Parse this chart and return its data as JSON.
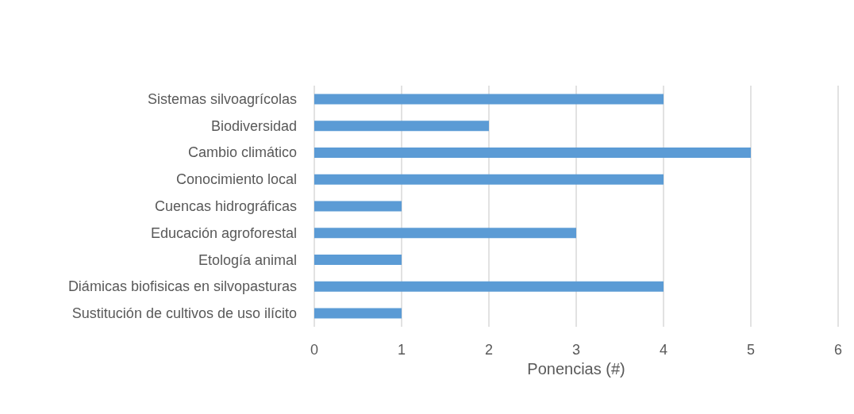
{
  "chart_data": {
    "type": "bar",
    "orientation": "horizontal",
    "xlabel": "Ponencias (#)",
    "categories": [
      "Sistemas silvoagrícolas",
      "Biodiversidad",
      "Cambio climático",
      "Conocimiento local",
      "Cuencas hidrográficas",
      "Educación agroforestal",
      "Etología animal",
      "Diámicas biofisicas en silvopasturas",
      "Sustitución de cultivos de uso ilícito"
    ],
    "values": [
      4,
      2,
      5,
      4,
      1,
      3,
      1,
      4,
      1
    ],
    "color": "#5b9bd5",
    "xlim": [
      0,
      6
    ],
    "xticks": [
      0,
      1,
      2,
      3,
      4,
      5,
      6
    ],
    "grid": "x"
  }
}
